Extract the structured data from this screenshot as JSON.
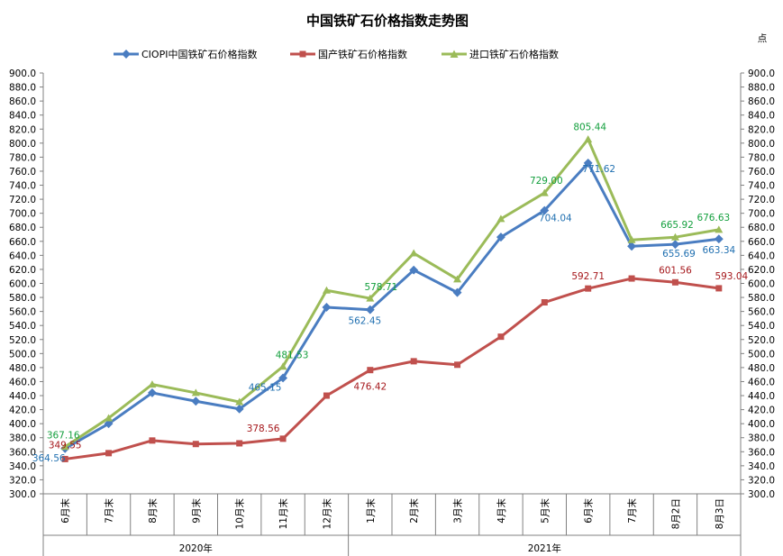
{
  "chart_data": {
    "type": "line",
    "title": "中国铁矿石价格指数走势图",
    "unit_label": "点",
    "categories": [
      "6月末",
      "7月末",
      "8月末",
      "9月末",
      "10月末",
      "11月末",
      "12月末",
      "1月末",
      "2月末",
      "3月末",
      "4月末",
      "5月末",
      "6月末",
      "7月末",
      "8月2日",
      "8月3日"
    ],
    "year_groups": [
      {
        "label": "2020年",
        "start": 0,
        "end": 6
      },
      {
        "label": "2021年",
        "start": 7,
        "end": 15
      }
    ],
    "ylim": [
      300,
      900
    ],
    "ytick_step": 20,
    "ytick_labels": [
      "300.0",
      "320.0",
      "340.0",
      "360.0",
      "380.0",
      "400.0",
      "420.0",
      "440.0",
      "460.0",
      "480.0",
      "500.0",
      "520.0",
      "540.0",
      "560.0",
      "580.0",
      "600.0",
      "620.0",
      "640.0",
      "660.0",
      "680.0",
      "700.0",
      "720.0",
      "740.0",
      "760.0",
      "780.0",
      "800.0",
      "820.0",
      "840.0",
      "860.0",
      "880.0",
      "900.0"
    ],
    "legend_position": "top",
    "grid": false,
    "series": [
      {
        "name": "CIOPI中国铁矿石价格指数",
        "color": "#4a7dc1",
        "marker": "diamond",
        "label_color": "#1f6fb0",
        "values": [
          364.56,
          400,
          444,
          432,
          421,
          465.15,
          566,
          562.45,
          619,
          587,
          666,
          704.04,
          771.62,
          653,
          655.69,
          663.34
        ],
        "labels": [
          {
            "index": 0,
            "text": "364.56"
          },
          {
            "index": 5,
            "text": "465.15"
          },
          {
            "index": 7,
            "text": "562.45"
          },
          {
            "index": 11,
            "text": "704.04"
          },
          {
            "index": 12,
            "text": "771.62"
          },
          {
            "index": 14,
            "text": "655.69"
          },
          {
            "index": 15,
            "text": "663.34"
          }
        ]
      },
      {
        "name": "国产铁矿石价格指数",
        "color": "#c0504d",
        "marker": "square",
        "label_color": "#a5171b",
        "values": [
          349.55,
          358,
          376,
          371,
          372,
          378.56,
          440,
          476.42,
          489,
          484,
          524,
          573,
          592.71,
          607,
          601.56,
          593.04
        ],
        "labels": [
          {
            "index": 0,
            "text": "349.55"
          },
          {
            "index": 5,
            "text": "378.56"
          },
          {
            "index": 7,
            "text": "476.42"
          },
          {
            "index": 12,
            "text": "592.71"
          },
          {
            "index": 14,
            "text": "601.56"
          },
          {
            "index": 15,
            "text": "593.04"
          }
        ]
      },
      {
        "name": "进口铁矿石价格指数",
        "color": "#9bbb59",
        "marker": "triangle",
        "label_color": "#139f3d",
        "values": [
          367.16,
          408,
          456,
          444,
          431,
          481.53,
          590,
          578.71,
          643,
          606,
          692,
          729.0,
          805.44,
          662,
          665.92,
          676.63
        ],
        "labels": [
          {
            "index": 0,
            "text": "367.16"
          },
          {
            "index": 5,
            "text": "481.53"
          },
          {
            "index": 7,
            "text": "578.71"
          },
          {
            "index": 11,
            "text": "729.00"
          },
          {
            "index": 12,
            "text": "805.44"
          },
          {
            "index": 14,
            "text": "665.92"
          },
          {
            "index": 15,
            "text": "676.63"
          }
        ]
      }
    ]
  }
}
